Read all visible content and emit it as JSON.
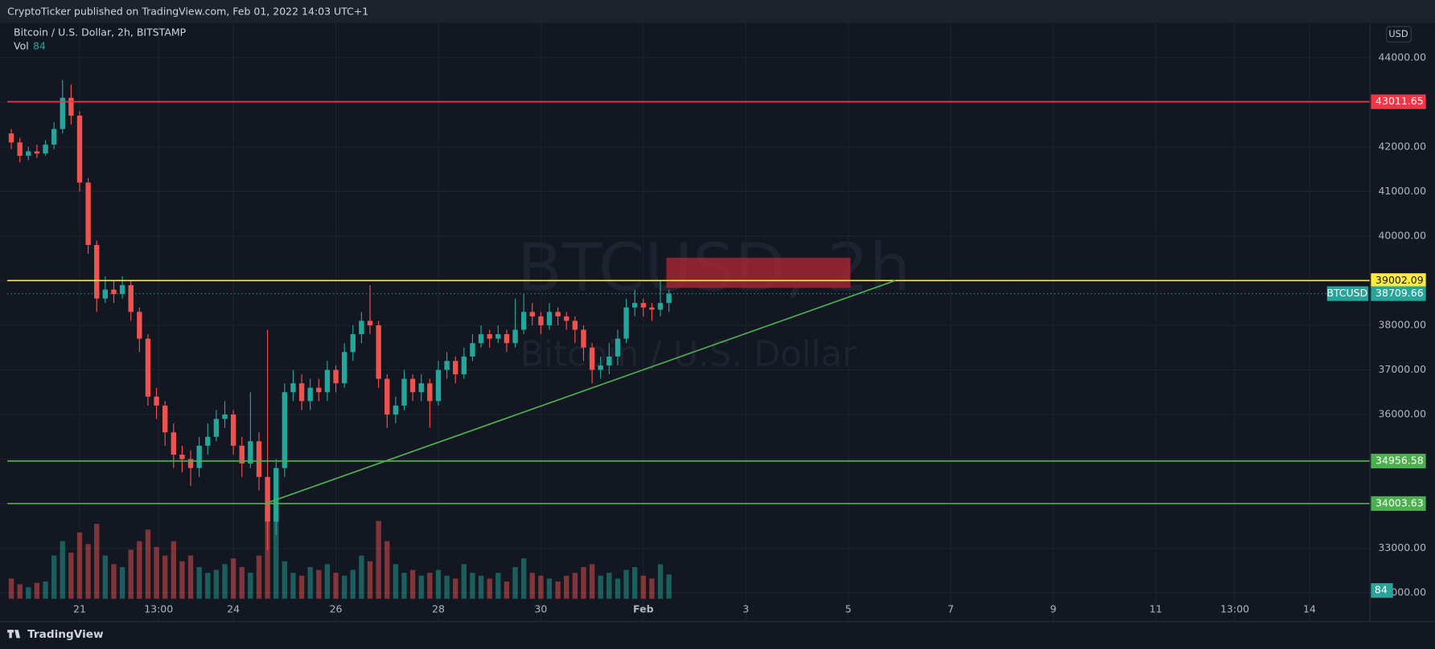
{
  "header": {
    "published": "CryptoTicker published on TradingView.com, Feb 01, 2022 14:03 UTC+1"
  },
  "chart_data": {
    "type": "candlestick",
    "title": "Bitcoin / U.S. Dollar, 2h, BITSTAMP",
    "currency": "USD",
    "symbol": "BTCUSD",
    "watermark": [
      "BTCUSD, 2h",
      "Bitcoin / U.S. Dollar"
    ],
    "volume_label": "Vol",
    "up_color": "#26a69a",
    "down_color": "#ef5350",
    "grid": true,
    "xlim": [
      "01-19 14:08",
      "02-15 04:20"
    ],
    "xticks": [
      {
        "value": "01-21 00:00",
        "label": "21"
      },
      {
        "value": "01-22 13:00",
        "label": "13:00"
      },
      {
        "value": "01-24 00:00",
        "label": "24"
      },
      {
        "value": "01-26 00:00",
        "label": "26"
      },
      {
        "value": "01-28 00:00",
        "label": "28"
      },
      {
        "value": "01-30 00:00",
        "label": "30"
      },
      {
        "value": "02-01 00:00",
        "label": "Feb"
      },
      {
        "value": "02-03 00:00",
        "label": "3"
      },
      {
        "value": "02-05 00:00",
        "label": "5"
      },
      {
        "value": "02-07 00:00",
        "label": "7"
      },
      {
        "value": "02-09 00:00",
        "label": "9"
      },
      {
        "value": "02-11 00:00",
        "label": "11"
      },
      {
        "value": "02-12 13:00",
        "label": "13:00"
      },
      {
        "value": "02-14 00:00",
        "label": "14"
      }
    ],
    "ylim": [
      31870,
      44780
    ],
    "yticks": [
      {
        "value": 32000,
        "label": "32000.00"
      },
      {
        "value": 33000,
        "label": "33000.00"
      },
      {
        "value": 34000,
        "label": "34000.00"
      },
      {
        "value": 35000,
        "label": "35000.00"
      },
      {
        "value": 36000,
        "label": "36000.00"
      },
      {
        "value": 37000,
        "label": "37000.00"
      },
      {
        "value": 38000,
        "label": "38000.00"
      },
      {
        "value": 39000,
        "label": "39000.00"
      },
      {
        "value": 40000,
        "label": "40000.00"
      },
      {
        "value": 41000,
        "label": "41000.00"
      },
      {
        "value": 42000,
        "label": "42000.00"
      },
      {
        "value": 43000,
        "label": "43000.00"
      },
      {
        "value": 44000,
        "label": "44000.00"
      }
    ],
    "volume_ylim": [
      0,
      400
    ],
    "x": [
      "01-19 16:00",
      "01-19 20:00",
      "01-20 00:00",
      "01-20 04:00",
      "01-20 08:00",
      "01-20 12:00",
      "01-20 16:00",
      "01-20 20:00",
      "01-21 00:00",
      "01-21 04:00",
      "01-21 08:00",
      "01-21 12:00",
      "01-21 16:00",
      "01-21 20:00",
      "01-22 00:00",
      "01-22 04:00",
      "01-22 08:00",
      "01-22 12:00",
      "01-22 16:00",
      "01-22 20:00",
      "01-23 00:00",
      "01-23 04:00",
      "01-23 08:00",
      "01-23 12:00",
      "01-23 16:00",
      "01-23 20:00",
      "01-24 00:00",
      "01-24 04:00",
      "01-24 08:00",
      "01-24 12:00",
      "01-24 16:00",
      "01-24 20:00",
      "01-25 00:00",
      "01-25 04:00",
      "01-25 08:00",
      "01-25 12:00",
      "01-25 16:00",
      "01-25 20:00",
      "01-26 00:00",
      "01-26 04:00",
      "01-26 08:00",
      "01-26 12:00",
      "01-26 16:00",
      "01-26 20:00",
      "01-27 00:00",
      "01-27 04:00",
      "01-27 08:00",
      "01-27 12:00",
      "01-27 16:00",
      "01-27 20:00",
      "01-28 00:00",
      "01-28 04:00",
      "01-28 08:00",
      "01-28 12:00",
      "01-28 16:00",
      "01-28 20:00",
      "01-29 00:00",
      "01-29 04:00",
      "01-29 08:00",
      "01-29 12:00",
      "01-29 16:00",
      "01-29 20:00",
      "01-30 00:00",
      "01-30 04:00",
      "01-30 08:00",
      "01-30 12:00",
      "01-30 16:00",
      "01-30 20:00",
      "01-31 00:00",
      "01-31 04:00",
      "01-31 08:00",
      "01-31 12:00",
      "01-31 16:00",
      "01-31 20:00",
      "02-01 00:00",
      "02-01 04:00",
      "02-01 08:00",
      "02-01 12:00"
    ],
    "open": [
      42300,
      42100,
      41800,
      41900,
      41850,
      42050,
      42400,
      43100,
      42700,
      41200,
      39800,
      38600,
      38800,
      38700,
      38900,
      38300,
      37700,
      36400,
      36200,
      35600,
      35100,
      35000,
      34800,
      35300,
      35500,
      35900,
      36000,
      35300,
      34900,
      35400,
      34600,
      33600,
      34800,
      36500,
      36700,
      36300,
      36600,
      36500,
      37000,
      36700,
      37400,
      37800,
      38100,
      38000,
      36800,
      36000,
      36200,
      36800,
      36500,
      36700,
      36300,
      37000,
      37200,
      36900,
      37300,
      37600,
      37800,
      37700,
      37800,
      37600,
      37900,
      38300,
      38200,
      38000,
      38300,
      38200,
      38100,
      37900,
      37500,
      37000,
      37100,
      37300,
      37700,
      38400,
      38500,
      38400,
      38350,
      38500
    ],
    "high": [
      42400,
      42200,
      42000,
      42050,
      42150,
      42550,
      43500,
      43400,
      42800,
      41300,
      39900,
      39100,
      39000,
      39100,
      39000,
      38400,
      37800,
      36600,
      36300,
      35800,
      35300,
      35200,
      35500,
      35800,
      36100,
      36300,
      36100,
      35500,
      36500,
      35600,
      37900,
      35000,
      36700,
      37000,
      36900,
      36800,
      36800,
      37200,
      37100,
      37600,
      38000,
      38300,
      38900,
      38100,
      36900,
      36400,
      37000,
      36900,
      36900,
      36800,
      37200,
      37400,
      37300,
      37500,
      37800,
      38000,
      37900,
      38000,
      37900,
      38600,
      38700,
      38500,
      38300,
      38500,
      38400,
      38300,
      38200,
      38000,
      37600,
      37300,
      37600,
      37900,
      38600,
      38800,
      38600,
      38500,
      39000,
      38800
    ],
    "low": [
      41950,
      41650,
      41700,
      41750,
      41800,
      41950,
      42300,
      42500,
      41000,
      39600,
      38300,
      38500,
      38500,
      38600,
      38100,
      37400,
      36200,
      35900,
      35300,
      34800,
      34700,
      34400,
      34600,
      35100,
      35400,
      35700,
      35100,
      34600,
      34800,
      34300,
      32950,
      33300,
      34600,
      36300,
      36100,
      36100,
      36300,
      36300,
      36500,
      36600,
      37200,
      37600,
      37800,
      36600,
      35700,
      35800,
      36100,
      36300,
      36300,
      35700,
      36200,
      36800,
      36700,
      36800,
      37200,
      37500,
      37500,
      37600,
      37400,
      37500,
      37800,
      38000,
      37800,
      37900,
      38000,
      37900,
      37600,
      37200,
      36700,
      36800,
      36900,
      37100,
      37600,
      38200,
      38200,
      38100,
      38200,
      38300
    ],
    "close": [
      42100,
      41800,
      41900,
      41850,
      42050,
      42400,
      43100,
      42700,
      41200,
      39800,
      38600,
      38800,
      38700,
      38900,
      38300,
      37700,
      36400,
      36200,
      35600,
      35100,
      35000,
      34800,
      35300,
      35500,
      35900,
      36000,
      35300,
      34900,
      35400,
      34600,
      33600,
      34800,
      36500,
      36700,
      36300,
      36600,
      36500,
      37000,
      36700,
      37400,
      37800,
      38100,
      38000,
      36800,
      36000,
      36200,
      36800,
      36500,
      36700,
      36300,
      37000,
      37200,
      36900,
      37300,
      37600,
      37800,
      37700,
      37800,
      37600,
      37900,
      38300,
      38200,
      38000,
      38300,
      38200,
      38100,
      37900,
      37500,
      37000,
      37100,
      37300,
      37700,
      38400,
      38500,
      38400,
      38350,
      38500,
      38709.66
    ],
    "volume": [
      70,
      50,
      40,
      55,
      60,
      150,
      200,
      160,
      230,
      190,
      260,
      150,
      120,
      110,
      170,
      200,
      240,
      180,
      150,
      200,
      130,
      150,
      110,
      90,
      100,
      120,
      140,
      110,
      90,
      150,
      320,
      280,
      130,
      90,
      80,
      110,
      100,
      120,
      90,
      80,
      100,
      150,
      130,
      270,
      200,
      120,
      90,
      100,
      80,
      90,
      100,
      80,
      70,
      120,
      90,
      80,
      70,
      90,
      60,
      110,
      140,
      90,
      80,
      70,
      60,
      80,
      90,
      110,
      120,
      80,
      90,
      70,
      100,
      110,
      80,
      70,
      120,
      84
    ],
    "levels": [
      {
        "value": 43011.65,
        "color": "#f23645"
      },
      {
        "value": 39002.09,
        "color": "#ffeb3b"
      },
      {
        "value": 34956.58,
        "color": "#4caf50"
      },
      {
        "value": 34003.63,
        "color": "#4caf50"
      }
    ],
    "trend_line": {
      "x": [
        "01-24 15:00",
        "02-05 22:00"
      ],
      "values": [
        34003.63,
        39002.09
      ],
      "color": "#4caf50"
    },
    "zone": {
      "x": [
        "02-01 10:48",
        "02-05 01:00"
      ],
      "values": [
        38840,
        39515
      ],
      "color": "#b22833"
    }
  },
  "footer": {
    "brand": "TradingView"
  }
}
